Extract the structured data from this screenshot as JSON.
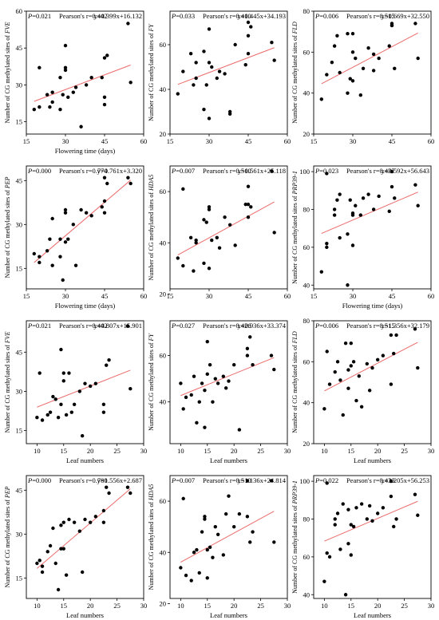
{
  "chart_data": [
    {
      "type": "scatter",
      "p": "0.021",
      "r": "0.442",
      "eq": "y=0.399x+16.132",
      "ylabel_prefix": "Number of CG methylated sites of ",
      "gene": "FVE",
      "xlabel": "Flowering time (days)",
      "xticks": [
        15,
        30,
        45,
        60
      ],
      "xlim": [
        15,
        60
      ],
      "yticks": [
        15,
        30,
        45,
        60
      ],
      "ylim": [
        10,
        60
      ],
      "fit": [
        0.399,
        16.132
      ],
      "x": [
        18,
        20,
        20,
        23,
        24,
        25,
        25,
        28,
        28,
        29,
        30,
        30,
        30,
        31,
        33,
        34,
        36,
        38,
        40,
        44,
        45,
        45,
        45,
        46,
        54,
        55
      ],
      "y": [
        20,
        21,
        37,
        26,
        21,
        23,
        27,
        20,
        33,
        26,
        36,
        37,
        46,
        25,
        27,
        29,
        13,
        30,
        33,
        33,
        41,
        25,
        22,
        42,
        55,
        31
      ]
    },
    {
      "type": "scatter",
      "p": "0.033",
      "r": "0.410",
      "eq": "y=0.445x+34.193",
      "ylabel_prefix": "Number of CG methylated sites of ",
      "gene": "FY",
      "xlabel": "",
      "xticks": [
        15,
        30,
        45,
        60
      ],
      "xlim": [
        15,
        60
      ],
      "yticks": [
        20,
        40,
        60
      ],
      "ylim": [
        20,
        75
      ],
      "fit": [
        0.445,
        34.193
      ],
      "x": [
        18,
        20,
        23,
        24,
        25,
        25,
        28,
        28,
        29,
        30,
        30,
        30,
        31,
        33,
        34,
        36,
        38,
        40,
        44,
        45,
        45,
        45,
        46,
        54,
        55,
        38
      ],
      "y": [
        38,
        48,
        56,
        42,
        45,
        52,
        31,
        57,
        42,
        52,
        27,
        67,
        50,
        45,
        48,
        47,
        29,
        60,
        51,
        56,
        64,
        70,
        68,
        61,
        53,
        30
      ]
    },
    {
      "type": "scatter",
      "p": "0.006",
      "r": "0.515",
      "eq": "y=0.669x+32.550",
      "ylabel_prefix": "Number of CG methylated sites of ",
      "gene": "FLD",
      "xlabel": "",
      "xticks": [
        15,
        30,
        45,
        60
      ],
      "xlim": [
        15,
        60
      ],
      "yticks": [
        20,
        40,
        60,
        80
      ],
      "ylim": [
        20,
        80
      ],
      "fit": [
        0.669,
        32.55
      ],
      "x": [
        18,
        20,
        22,
        23,
        24,
        25,
        28,
        28,
        29,
        30,
        30,
        30,
        31,
        33,
        34,
        36,
        38,
        40,
        44,
        45,
        45,
        45,
        46,
        54,
        55,
        38
      ],
      "y": [
        37,
        49,
        55,
        63,
        68,
        50,
        40,
        69,
        47,
        60,
        69,
        46,
        57,
        39,
        52,
        62,
        59,
        57,
        63,
        73,
        73,
        74,
        52,
        74,
        57,
        51
      ]
    },
    {
      "type": "scatter",
      "p": "0.000",
      "r": "0.774",
      "eq": "y=0.761x+3.320",
      "ylabel_prefix": "Number of CG methylated sites of ",
      "gene": "PEP",
      "xlabel": "Flowering time (days)",
      "xticks": [
        15,
        30,
        45,
        60
      ],
      "xlim": [
        15,
        60
      ],
      "yticks": [
        15,
        30,
        45
      ],
      "ylim": [
        8,
        50
      ],
      "fit": [
        0.761,
        3.32
      ],
      "x": [
        18,
        20,
        20,
        23,
        24,
        25,
        25,
        28,
        28,
        29,
        30,
        30,
        30,
        31,
        33,
        34,
        36,
        38,
        40,
        44,
        45,
        45,
        45,
        46,
        54,
        55
      ],
      "y": [
        20,
        19,
        17,
        21,
        25,
        32,
        16,
        19,
        25,
        11,
        24,
        34,
        35,
        25,
        30,
        16,
        35,
        34,
        33,
        36,
        38,
        34,
        46,
        44,
        46,
        44
      ]
    },
    {
      "type": "scatter",
      "p": "0.007",
      "r": "0.510",
      "eq": "y=0.561x+25.118",
      "ylabel_prefix": "Number of CG methylated sites of ",
      "gene": "HDA5",
      "xlabel": "",
      "xticks": [
        15,
        30,
        45,
        60
      ],
      "xlim": [
        15,
        60
      ],
      "yticks": [
        20,
        40,
        60
      ],
      "ylim": [
        22,
        70
      ],
      "fit": [
        0.561,
        25.118
      ],
      "x": [
        18,
        20,
        20,
        23,
        24,
        25,
        25,
        28,
        28,
        29,
        30,
        30,
        30,
        31,
        33,
        34,
        36,
        38,
        40,
        44,
        45,
        45,
        45,
        46,
        54,
        55
      ],
      "y": [
        34,
        31,
        61,
        42,
        29,
        40,
        41,
        32,
        49,
        48,
        53,
        54,
        30,
        41,
        42,
        38,
        50,
        47,
        39,
        55,
        62,
        50,
        55,
        54,
        68,
        44
      ]
    },
    {
      "type": "scatter",
      "p": "0.023",
      "r": "0.437",
      "eq": "y=0.592x+56.643",
      "ylabel_prefix": "Number of CG methylated sites of ",
      "gene": "PRP39-1",
      "xlabel": "Flowering time (days)",
      "xticks": [
        15,
        30,
        45,
        60
      ],
      "xlim": [
        15,
        60
      ],
      "yticks": [
        40,
        60,
        80,
        100
      ],
      "ylim": [
        38,
        103
      ],
      "fit": [
        0.592,
        56.643
      ],
      "x": [
        18,
        20,
        20,
        20,
        23,
        23,
        24,
        25,
        25,
        28,
        28,
        29,
        30,
        30,
        30,
        31,
        33,
        34,
        36,
        38,
        40,
        44,
        45,
        45,
        46,
        54,
        55
      ],
      "y": [
        47,
        60,
        62,
        99,
        80,
        77,
        85,
        65,
        88,
        40,
        67,
        85,
        77,
        61,
        78,
        82,
        77,
        86,
        88,
        80,
        87,
        79,
        100,
        92,
        86,
        93,
        82
      ]
    },
    {
      "type": "scatter",
      "p": "0.021",
      "r": "0.442",
      "eq": "y=0.807x+15.901",
      "ylabel_prefix": "Number of CG methylated sites of ",
      "gene": "FVE",
      "xlabel": "Leaf numbers",
      "xticks": [
        10,
        15,
        20,
        25,
        30
      ],
      "xlim": [
        8,
        30
      ],
      "yticks": [
        15,
        30,
        45
      ],
      "ylim": [
        10,
        57
      ],
      "fit": [
        0.807,
        15.901
      ],
      "x": [
        10,
        10.5,
        11,
        12,
        12.5,
        13,
        13.5,
        14,
        14.5,
        14.5,
        15,
        15,
        15.5,
        16,
        16.5,
        17,
        18,
        18.5,
        19,
        20,
        21,
        22.5,
        22.5,
        23,
        23.5,
        27,
        27.5
      ],
      "y": [
        20,
        37,
        19,
        21,
        22,
        28,
        27,
        20,
        46,
        25,
        37,
        34,
        21,
        37,
        22,
        25,
        30,
        13,
        33,
        32,
        33,
        25,
        22,
        40,
        42,
        55,
        31
      ]
    },
    {
      "type": "scatter",
      "p": "0.027",
      "r": "0.426",
      "eq": "y=0.936x+33.374",
      "ylabel_prefix": "Number of CG methylated sites of ",
      "gene": "FY",
      "xlabel": "Leaf numbers",
      "xticks": [
        10,
        15,
        20,
        25,
        30
      ],
      "xlim": [
        8,
        30
      ],
      "yticks": [
        40,
        60
      ],
      "ylim": [
        22,
        75
      ],
      "fit": [
        0.936,
        33.374
      ],
      "x": [
        10,
        10.5,
        11,
        12,
        12.5,
        13,
        13.5,
        14,
        14.5,
        14.5,
        15,
        15,
        15.5,
        16,
        16.5,
        17,
        18,
        18.5,
        19,
        20,
        21,
        22.5,
        22.5,
        23,
        23.5,
        27,
        27.5
      ],
      "y": [
        48,
        37,
        42,
        43,
        51,
        31,
        40,
        48,
        29,
        45,
        66,
        52,
        56,
        40,
        50,
        48,
        51,
        46,
        49,
        56,
        28,
        60,
        63,
        68,
        56,
        60,
        54
      ]
    },
    {
      "type": "scatter",
      "p": "0.006",
      "r": "0.515",
      "eq": "y=1.356x+32.179",
      "ylabel_prefix": "Number of CG methylated sites of ",
      "gene": "FLD",
      "xlabel": "Leaf numbers",
      "xticks": [
        10,
        15,
        20,
        25,
        30
      ],
      "xlim": [
        8,
        30
      ],
      "yticks": [
        20,
        40,
        60,
        80
      ],
      "ylim": [
        20,
        80
      ],
      "fit": [
        1.356,
        32.179
      ],
      "x": [
        10,
        10.5,
        11,
        12,
        12.5,
        13,
        13.5,
        14,
        14.5,
        14.5,
        15,
        15,
        15.5,
        16,
        16.5,
        17,
        18,
        18.5,
        19,
        20,
        21,
        22.5,
        22.5,
        23,
        23.5,
        27,
        27.5
      ],
      "y": [
        37,
        65,
        49,
        55,
        60,
        51,
        34,
        69,
        47,
        56,
        69,
        58,
        60,
        41,
        53,
        38,
        59,
        46,
        57,
        61,
        63,
        73,
        49,
        64,
        73,
        76,
        57
      ]
    },
    {
      "type": "scatter",
      "p": "0.000",
      "r": "0.780",
      "eq": "y=1.556x+2.687",
      "ylabel_prefix": "Number of CG methylated sites of ",
      "gene": "PEP",
      "xlabel": "Leaf numbers",
      "xticks": [
        10,
        15,
        20,
        25,
        30
      ],
      "xlim": [
        8,
        30
      ],
      "yticks": [
        15,
        30,
        45
      ],
      "ylim": [
        8,
        50
      ],
      "fit": [
        1.556,
        2.687
      ],
      "x": [
        10,
        10.5,
        11,
        11,
        12,
        12.5,
        13,
        13.5,
        14,
        14.5,
        14.5,
        15,
        15,
        15.5,
        16,
        17,
        18,
        18.5,
        19,
        20,
        21,
        22.5,
        22.5,
        23,
        23.5,
        27,
        27.5
      ],
      "y": [
        20,
        21,
        17,
        19,
        24,
        26,
        32,
        20,
        11,
        25,
        33,
        25,
        34,
        16,
        35,
        34,
        31,
        17,
        35,
        34,
        36,
        38,
        34,
        46,
        44,
        46,
        44
      ]
    },
    {
      "type": "scatter",
      "p": "0.007",
      "r": "0.510",
      "eq": "y=1.136x+24.814",
      "ylabel_prefix": "Number of CG methylated sites of ",
      "gene": "HDA5",
      "xlabel": "Leaf numbers",
      "xticks": [
        10,
        15,
        20,
        25,
        30
      ],
      "xlim": [
        8,
        30
      ],
      "yticks": [
        20,
        40,
        60
      ],
      "ylim": [
        22,
        70
      ],
      "fit": [
        1.136,
        24.814
      ],
      "x": [
        10,
        10.5,
        11,
        12,
        12.5,
        13,
        13.5,
        14,
        14.5,
        14.5,
        15,
        15,
        15.5,
        16,
        16.5,
        17,
        18,
        18.5,
        19,
        20,
        21,
        22.5,
        22.5,
        23,
        23.5,
        27,
        27.5
      ],
      "y": [
        34,
        61,
        31,
        29,
        40,
        41,
        32,
        48,
        53,
        54,
        30,
        41,
        42,
        38,
        50,
        47,
        39,
        55,
        62,
        50,
        55,
        54,
        68,
        44,
        48,
        68,
        44
      ]
    },
    {
      "type": "scatter",
      "p": "0.022",
      "r": "0.439",
      "eq": "y=1.205x+56.253",
      "ylabel_prefix": "Number of CG methylated sites of ",
      "gene": "PRP39-1",
      "xlabel": "Leaf numbers",
      "xticks": [
        10,
        15,
        20,
        25,
        30
      ],
      "xlim": [
        8,
        30
      ],
      "yticks": [
        40,
        60,
        80,
        100
      ],
      "ylim": [
        38,
        103
      ],
      "fit": [
        1.205,
        56.253
      ],
      "x": [
        10,
        10.5,
        10.5,
        11,
        12,
        12,
        12.5,
        13,
        13.5,
        14,
        14.5,
        14.5,
        15,
        15,
        15.5,
        16,
        17,
        18,
        18.5,
        19,
        20,
        21,
        22.5,
        22.5,
        23,
        23.5,
        27,
        27.5
      ],
      "y": [
        47,
        99,
        62,
        60,
        80,
        77,
        83,
        64,
        88,
        40,
        67,
        85,
        77,
        61,
        76,
        86,
        88,
        80,
        87,
        79,
        83,
        86,
        100,
        92,
        76,
        80,
        93,
        82
      ]
    }
  ],
  "colors": {
    "point": "#000000",
    "fit_line": "#ec6b6b",
    "axis": "#000000"
  }
}
